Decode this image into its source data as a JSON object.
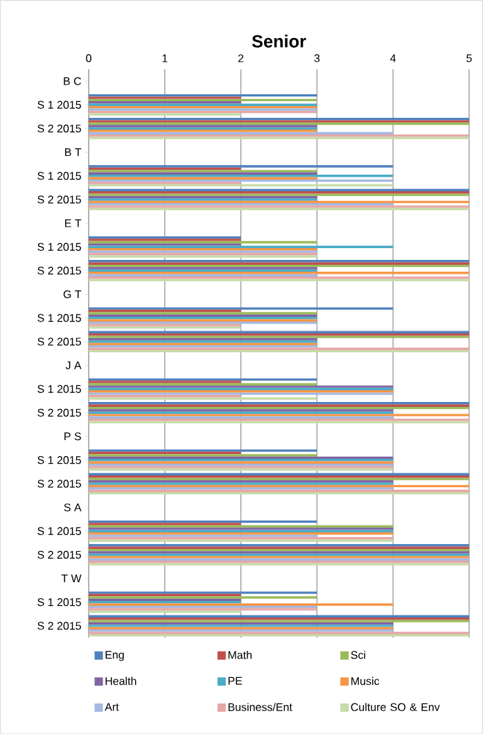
{
  "chart_data": {
    "type": "bar",
    "orientation": "horizontal",
    "title": "Senior",
    "categories": [
      "B C",
      "S 1 2015",
      "S 2 2015",
      "B T",
      "S 1 2015",
      "S 2 2015",
      "E T",
      "S 1 2015",
      "S 2 2015",
      "G T",
      "S 1 2015",
      "S 2 2015",
      "J A",
      "S 1 2015",
      "S 2 2015",
      "P S",
      "S 1 2015",
      "S 2 2015",
      "S A",
      "S 1 2015",
      "S 2 2015",
      "T W",
      "S 1 2015",
      "S 2 2015"
    ],
    "series": [
      {
        "name": "Eng",
        "color": "#4f81bd",
        "values": [
          null,
          3,
          5,
          null,
          4,
          5,
          null,
          2,
          5,
          null,
          4,
          5,
          null,
          3,
          5,
          null,
          3,
          5,
          null,
          3,
          5,
          null,
          3,
          5
        ]
      },
      {
        "name": "Math",
        "color": "#c0504d",
        "values": [
          null,
          2,
          5,
          null,
          2,
          5,
          null,
          2,
          5,
          null,
          2,
          5,
          null,
          2,
          5,
          null,
          2,
          5,
          null,
          2,
          5,
          null,
          2,
          5
        ]
      },
      {
        "name": "Sci",
        "color": "#9bbb59",
        "values": [
          null,
          3,
          5,
          null,
          3,
          5,
          null,
          3,
          5,
          null,
          3,
          5,
          null,
          3,
          5,
          null,
          3,
          5,
          null,
          4,
          5,
          null,
          3,
          5
        ]
      },
      {
        "name": "Health",
        "color": "#8064a2",
        "values": [
          null,
          2,
          3,
          null,
          3,
          3,
          null,
          2,
          3,
          null,
          3,
          3,
          null,
          4,
          4,
          null,
          4,
          4,
          null,
          4,
          5,
          null,
          2,
          4
        ]
      },
      {
        "name": "PE",
        "color": "#4bacc6",
        "values": [
          null,
          3,
          3,
          null,
          4,
          3,
          null,
          4,
          3,
          null,
          3,
          3,
          null,
          4,
          4,
          null,
          4,
          4,
          null,
          4,
          5,
          null,
          2,
          4
        ]
      },
      {
        "name": "Music",
        "color": "#f79646",
        "values": [
          null,
          3,
          3,
          null,
          3,
          5,
          null,
          3,
          5,
          null,
          3,
          3,
          null,
          4,
          5,
          null,
          4,
          5,
          null,
          4,
          5,
          null,
          4,
          4
        ]
      },
      {
        "name": "Art",
        "color": "#a5b8e0",
        "values": [
          null,
          3,
          4,
          null,
          4,
          4,
          null,
          3,
          3,
          null,
          3,
          3,
          null,
          4,
          4,
          null,
          4,
          4,
          null,
          3,
          5,
          null,
          3,
          4
        ]
      },
      {
        "name": "Business/Ent",
        "color": "#e6a7a6",
        "values": [
          null,
          3,
          5,
          null,
          2,
          5,
          null,
          3,
          5,
          null,
          2,
          5,
          null,
          2,
          5,
          null,
          4,
          5,
          null,
          4,
          5,
          null,
          3,
          5
        ]
      },
      {
        "name": "Culture SO & Env",
        "color": "#c8dba9",
        "values": [
          null,
          2,
          5,
          null,
          4,
          5,
          null,
          3,
          5,
          null,
          2,
          5,
          null,
          3,
          5,
          null,
          4,
          5,
          null,
          4,
          5,
          null,
          2,
          5
        ]
      }
    ],
    "xlim": [
      0,
      5
    ],
    "xticks": [
      0,
      1,
      2,
      3,
      4,
      5
    ],
    "grid": "x",
    "legend": "bottom"
  }
}
